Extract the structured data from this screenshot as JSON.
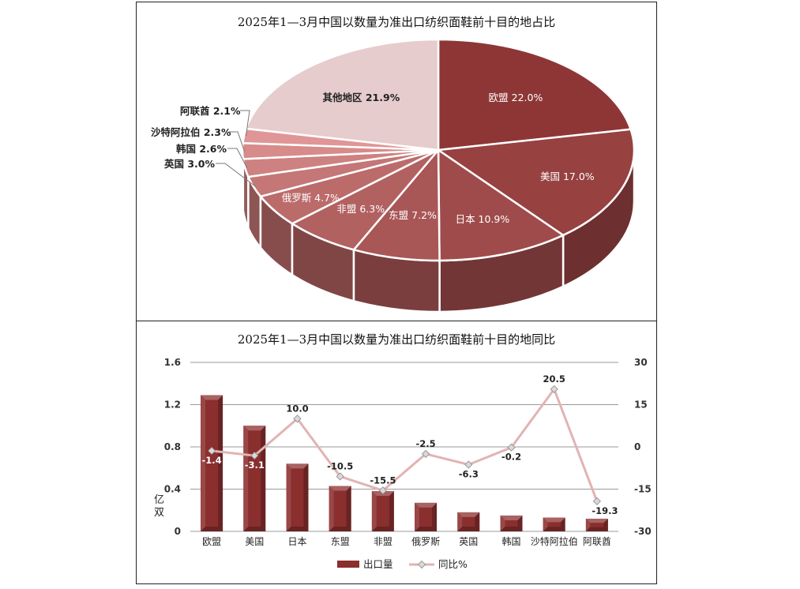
{
  "chart_data": [
    {
      "type": "pie",
      "title": "2025年1—3月中国以数量为准出口纺织面鞋前十目的地占比",
      "slices": [
        {
          "label": "欧盟",
          "value": 22.0,
          "display": "欧盟 22.0%"
        },
        {
          "label": "美国",
          "value": 17.0,
          "display": "美国 17.0%"
        },
        {
          "label": "日本",
          "value": 10.9,
          "display": "日本 10.9%"
        },
        {
          "label": "东盟",
          "value": 7.2,
          "display": "东盟 7.2%"
        },
        {
          "label": "非盟",
          "value": 6.3,
          "display": "非盟 6.3%"
        },
        {
          "label": "俄罗斯",
          "value": 4.7,
          "display": "俄罗斯 4.7%"
        },
        {
          "label": "英国",
          "value": 3.0,
          "display": "英国 3.0%"
        },
        {
          "label": "韩国",
          "value": 2.6,
          "display": "韩国 2.6%"
        },
        {
          "label": "沙特阿拉伯",
          "value": 2.3,
          "display": "沙特阿拉伯 2.3%"
        },
        {
          "label": "阿联酋",
          "value": 2.1,
          "display": "阿联酋 2.1%"
        },
        {
          "label": "其他地区",
          "value": 21.9,
          "display": "其他地区 21.9%"
        }
      ],
      "colors": {
        "dark": "#8e3636",
        "light": "#e6cccc"
      }
    },
    {
      "type": "bar",
      "title": "2025年1—3月中国以数量为准出口纺织面鞋前十目的地同比",
      "categories": [
        "欧盟",
        "美国",
        "日本",
        "东盟",
        "非盟",
        "俄罗斯",
        "英国",
        "韩国",
        "沙特阿拉伯",
        "阿联酋"
      ],
      "series": [
        {
          "name": "出口量",
          "type": "bar",
          "axis": "left",
          "values": [
            1.29,
            1.0,
            0.64,
            0.43,
            0.38,
            0.27,
            0.18,
            0.15,
            0.13,
            0.12
          ]
        },
        {
          "name": "同比%",
          "type": "line",
          "axis": "right",
          "values": [
            -1.4,
            -3.1,
            10.0,
            -10.5,
            -15.5,
            -2.5,
            -6.3,
            -0.2,
            20.5,
            -19.3
          ],
          "labels": [
            "-1.4",
            "-3.1",
            "10.0",
            "-10.5",
            "-15.5",
            "-2.5",
            "-6.3",
            "-0.2",
            "20.5",
            "-19.3"
          ]
        }
      ],
      "ylabel": "亿双",
      "ylim": [
        0,
        1.6
      ],
      "yticks": [
        "1.6",
        "1.2",
        "0.8",
        "0.4",
        "0"
      ],
      "y2lim": [
        -30,
        30
      ],
      "y2ticks": [
        "30",
        "15",
        "0",
        "-15",
        "-30"
      ],
      "grid": true,
      "legend_position": "bottom",
      "colors": {
        "bar": "#8b2e2e",
        "line": "#e2b3b3"
      }
    }
  ]
}
